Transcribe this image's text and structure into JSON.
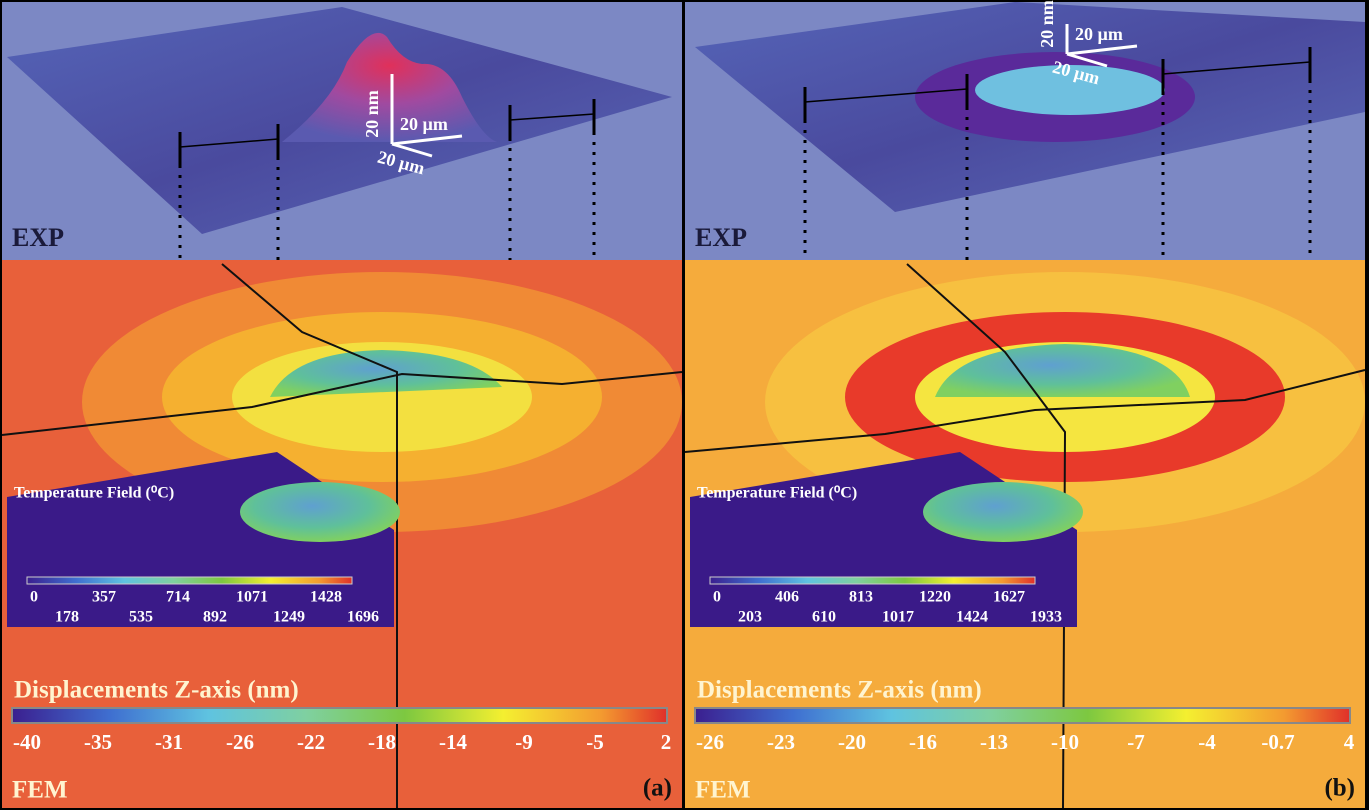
{
  "panels": [
    {
      "label": "(a)",
      "exp_label": "EXP",
      "fem_label": "FEM",
      "scale_bar": {
        "z": "20 nm",
        "x": "20 µm",
        "y": "20 µm"
      },
      "temperature": {
        "title": "Temperature Field (⁰C)",
        "ticks": [
          0,
          178,
          357,
          535,
          714,
          892,
          1071,
          1249,
          1428,
          1696
        ]
      },
      "displacement": {
        "title": "Displacements Z-axis (nm)",
        "ticks": [
          -40,
          -35,
          -31,
          -26,
          -22,
          -18,
          -14,
          -9,
          -5,
          2
        ]
      }
    },
    {
      "label": "(b)",
      "exp_label": "EXP",
      "fem_label": "FEM",
      "scale_bar": {
        "z": "20 nm",
        "x": "20 µm",
        "y": "20 µm"
      },
      "temperature": {
        "title": "Temperature Field (⁰C)",
        "ticks": [
          0,
          203,
          406,
          610,
          813,
          1017,
          1220,
          1424,
          1627,
          1933
        ]
      },
      "displacement": {
        "title": "Displacements Z-axis (nm)",
        "ticks": [
          -26,
          -23,
          -20,
          -16,
          -13,
          -10,
          -7,
          -4,
          -0.7,
          4
        ]
      }
    }
  ]
}
